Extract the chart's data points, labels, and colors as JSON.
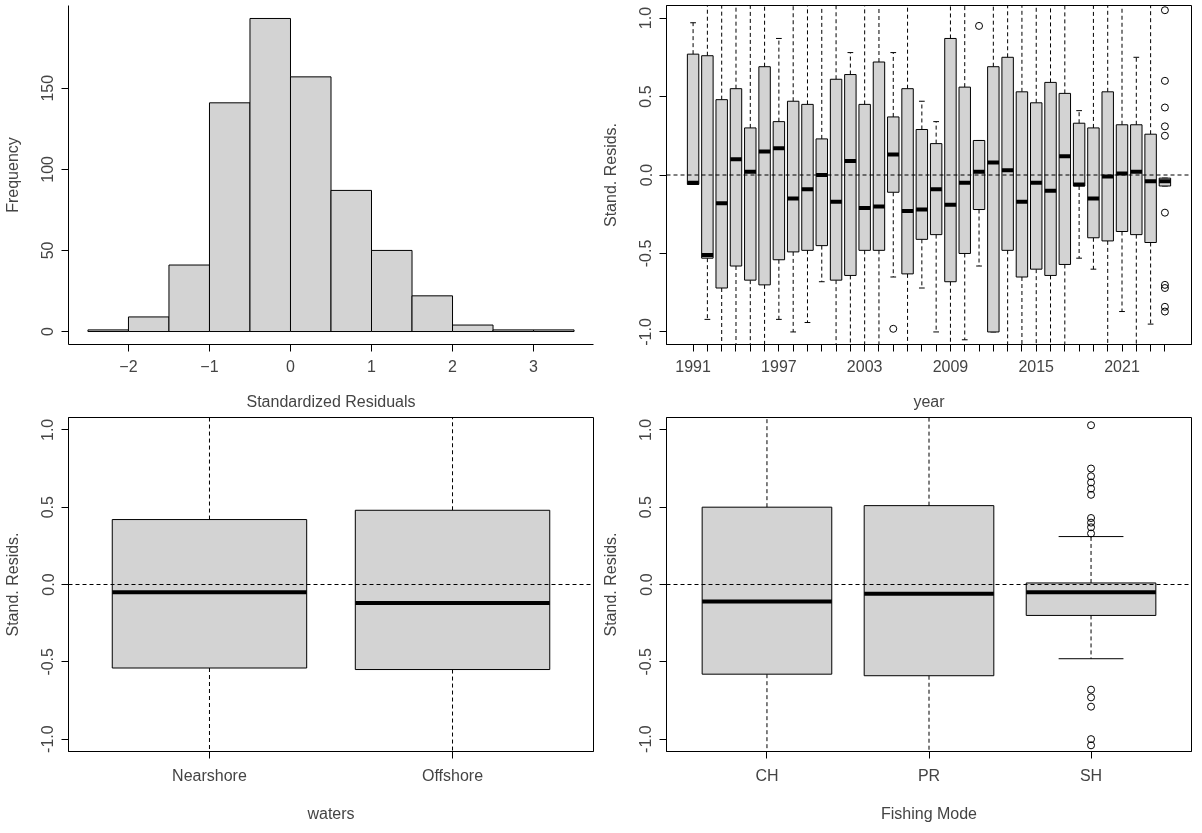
{
  "chart_data": [
    {
      "type": "histogram",
      "xlabel": "Standardized Residuals",
      "ylabel": "Frequency",
      "color": "#d3d3d3",
      "bins": [
        -2.5,
        -2,
        -1.5,
        -1,
        -0.5,
        0,
        0.5,
        1,
        1.5,
        2,
        2.5,
        3,
        3.5
      ],
      "values": [
        1,
        9,
        41,
        141,
        193,
        157,
        87,
        50,
        22,
        4,
        1,
        1
      ],
      "xlim": [
        -2.74,
        3.74
      ],
      "ylim": [
        -8,
        201
      ],
      "xticks": [
        -2,
        -1,
        0,
        1,
        2,
        3
      ],
      "yticks": [
        0,
        50,
        100,
        150
      ],
      "grid": false
    },
    {
      "type": "box",
      "xlabel": "year",
      "ylabel": "Stand. Resids.",
      "color": "#d3d3d3",
      "categories": [
        "1991",
        null,
        null,
        null,
        null,
        null,
        "1997",
        null,
        null,
        null,
        null,
        null,
        "2003",
        null,
        null,
        null,
        null,
        null,
        "2009",
        null,
        null,
        null,
        null,
        null,
        "2015",
        null,
        null,
        null,
        null,
        null,
        "2021",
        null,
        null,
        null
      ],
      "boxes": [
        {
          "low": -0.06,
          "q1": -0.06,
          "median": -0.05,
          "q3": 0.77,
          "high": 0.97
        },
        {
          "low": -0.92,
          "q1": -0.53,
          "median": -0.51,
          "q3": 0.76,
          "high": 1.08
        },
        {
          "low": -1.08,
          "q1": -0.72,
          "median": -0.18,
          "q3": 0.48,
          "high": 1.08
        },
        {
          "low": -1.08,
          "q1": -0.58,
          "median": 0.1,
          "q3": 0.55,
          "high": 1.08
        },
        {
          "low": -1.08,
          "q1": -0.67,
          "median": 0.02,
          "q3": 0.3,
          "high": 1.08
        },
        {
          "low": -1.08,
          "q1": -0.7,
          "median": 0.15,
          "q3": 0.69,
          "high": 1.08
        },
        {
          "low": -0.92,
          "q1": -0.54,
          "median": 0.17,
          "q3": 0.34,
          "high": 0.87
        },
        {
          "low": -1.0,
          "q1": -0.49,
          "median": -0.15,
          "q3": 0.47,
          "high": 1.08
        },
        {
          "low": -0.94,
          "q1": -0.48,
          "median": -0.09,
          "q3": 0.45,
          "high": 1.08
        },
        {
          "low": -0.68,
          "q1": -0.45,
          "median": 0.0,
          "q3": 0.23,
          "high": 1.08
        },
        {
          "low": -1.08,
          "q1": -0.67,
          "median": -0.17,
          "q3": 0.61,
          "high": 1.08
        },
        {
          "low": -1.08,
          "q1": -0.64,
          "median": 0.09,
          "q3": 0.64,
          "high": 0.78
        },
        {
          "low": -1.08,
          "q1": -0.48,
          "median": -0.21,
          "q3": 0.45,
          "high": 1.08
        },
        {
          "low": -1.08,
          "q1": -0.48,
          "median": -0.2,
          "q3": 0.72,
          "high": 1.08
        },
        {
          "low": -0.65,
          "q1": -0.11,
          "median": 0.13,
          "q3": 0.37,
          "high": 0.78,
          "outliers": [
            -0.98
          ]
        },
        {
          "low": -1.08,
          "q1": -0.63,
          "median": -0.23,
          "q3": 0.55,
          "high": 1.08
        },
        {
          "low": -0.72,
          "q1": -0.41,
          "median": -0.22,
          "q3": 0.29,
          "high": 0.47
        },
        {
          "low": -1.0,
          "q1": -0.38,
          "median": -0.09,
          "q3": 0.2,
          "high": 0.34
        },
        {
          "low": -1.08,
          "q1": -0.68,
          "median": -0.19,
          "q3": 0.87,
          "high": 1.08
        },
        {
          "low": -1.05,
          "q1": -0.5,
          "median": -0.05,
          "q3": 0.56,
          "high": 1.08
        },
        {
          "low": -0.58,
          "q1": -0.22,
          "median": 0.02,
          "q3": 0.22,
          "high": 0.22,
          "outliers": [
            0.95
          ]
        },
        {
          "low": -1.0,
          "q1": -1.0,
          "median": 0.08,
          "q3": 0.69,
          "high": 1.08
        },
        {
          "low": -1.08,
          "q1": -0.48,
          "median": 0.03,
          "q3": 0.75,
          "high": 1.08
        },
        {
          "low": -1.08,
          "q1": -0.65,
          "median": -0.17,
          "q3": 0.53,
          "high": 1.08
        },
        {
          "low": -1.08,
          "q1": -0.6,
          "median": -0.05,
          "q3": 0.46,
          "high": 1.08
        },
        {
          "low": -1.08,
          "q1": -0.64,
          "median": -0.1,
          "q3": 0.59,
          "high": 1.08
        },
        {
          "low": -1.08,
          "q1": -0.57,
          "median": 0.12,
          "q3": 0.52,
          "high": 1.08
        },
        {
          "low": -0.53,
          "q1": -0.07,
          "median": -0.06,
          "q3": 0.33,
          "high": 0.41
        },
        {
          "low": -0.6,
          "q1": -0.4,
          "median": -0.15,
          "q3": 0.3,
          "high": 1.08
        },
        {
          "low": -1.08,
          "q1": -0.42,
          "median": -0.01,
          "q3": 0.53,
          "high": 1.08
        },
        {
          "low": -0.87,
          "q1": -0.36,
          "median": 0.01,
          "q3": 0.32,
          "high": 1.08
        },
        {
          "low": -1.08,
          "q1": -0.38,
          "median": 0.02,
          "q3": 0.32,
          "high": 0.75
        },
        {
          "low": -0.95,
          "q1": -0.43,
          "median": -0.04,
          "q3": 0.26,
          "high": 1.08
        },
        {
          "low": -0.07,
          "q1": -0.07,
          "median": -0.04,
          "q3": -0.02,
          "high": -0.02,
          "outliers": [
            1.05,
            0.6,
            0.43,
            0.31,
            0.25,
            -0.24,
            -0.7,
            -0.72,
            -0.84,
            -0.87
          ]
        }
      ],
      "ylim": [
        -1.08,
        1.08
      ],
      "yticks": [
        {
          "value": -1,
          "label": "-1.0"
        },
        {
          "value": -0.5,
          "label": "-0.5"
        },
        {
          "value": 0,
          "label": "0.0"
        },
        {
          "value": 0.5,
          "label": "0.5"
        },
        {
          "value": 1,
          "label": "1.0"
        }
      ],
      "ref_lines": [
        {
          "axis": "y",
          "value": 0,
          "line_style": "dashed"
        }
      ],
      "grid": false
    },
    {
      "type": "box",
      "xlabel": "waters",
      "ylabel": "Stand. Resids.",
      "color": "#d3d3d3",
      "categories": [
        "Nearshore",
        "Offshore"
      ],
      "boxes": [
        {
          "low": -1.08,
          "q1": -0.54,
          "median": -0.05,
          "q3": 0.42,
          "high": 1.08
        },
        {
          "low": -1.08,
          "q1": -0.55,
          "median": -0.12,
          "q3": 0.48,
          "high": 1.08
        }
      ],
      "ylim": [
        -1.08,
        1.08
      ],
      "yticks": [
        {
          "value": -1,
          "label": "-1.0"
        },
        {
          "value": -0.5,
          "label": "-0.5"
        },
        {
          "value": 0,
          "label": "0.0"
        },
        {
          "value": 0.5,
          "label": "0.5"
        },
        {
          "value": 1,
          "label": "1.0"
        }
      ],
      "ref_lines": [
        {
          "axis": "y",
          "value": 0,
          "line_style": "dashed"
        }
      ],
      "grid": false
    },
    {
      "type": "box",
      "xlabel": "Fishing Mode",
      "ylabel": "Stand. Resids.",
      "color": "#d3d3d3",
      "categories": [
        "CH",
        "PR",
        "SH"
      ],
      "boxes": [
        {
          "low": -1.08,
          "q1": -0.58,
          "median": -0.11,
          "q3": 0.5,
          "high": 1.08
        },
        {
          "low": -1.08,
          "q1": -0.59,
          "median": -0.06,
          "q3": 0.51,
          "high": 1.08
        },
        {
          "low": -0.48,
          "q1": -0.2,
          "median": -0.05,
          "q3": 0.01,
          "high": 0.31,
          "outliers": [
            1.03,
            0.75,
            0.7,
            0.66,
            0.62,
            0.58,
            0.43,
            0.4,
            0.37,
            0.33,
            -0.68,
            -0.73,
            -0.79,
            -1.0,
            -1.04
          ]
        }
      ],
      "ylim": [
        -1.08,
        1.08
      ],
      "yticks": [
        {
          "value": -1,
          "label": "-1.0"
        },
        {
          "value": -0.5,
          "label": "-0.5"
        },
        {
          "value": 0,
          "label": "0.0"
        },
        {
          "value": 0.5,
          "label": "0.5"
        },
        {
          "value": 1,
          "label": "1.0"
        }
      ],
      "ref_lines": [
        {
          "axis": "y",
          "value": 0,
          "line_style": "dashed"
        }
      ],
      "grid": false
    }
  ]
}
